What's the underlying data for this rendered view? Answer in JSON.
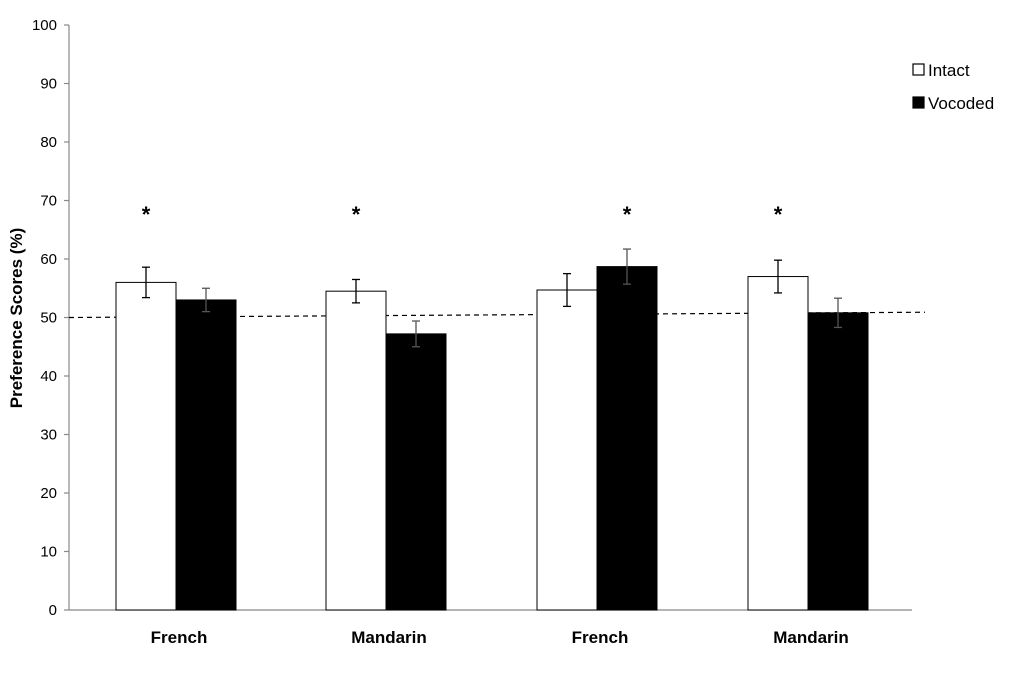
{
  "chart_data": {
    "type": "bar",
    "ylabel": "Preference Scores (%)",
    "xlabel": "",
    "ylim": [
      0,
      100
    ],
    "yticks": [
      "0",
      "10",
      "20",
      "30",
      "40",
      "50",
      "60",
      "70",
      "80",
      "90",
      "100"
    ],
    "categories": [
      "French",
      "Mandarin",
      "French",
      "Mandarin"
    ],
    "series": [
      {
        "name": "Intact",
        "color": "#ffffff",
        "values": [
          56,
          54.5,
          54.7,
          57
        ],
        "errors": [
          2.6,
          2.0,
          2.8,
          2.8
        ]
      },
      {
        "name": "Vocoded",
        "color": "#000000",
        "values": [
          53,
          47.2,
          58.7,
          50.8
        ],
        "errors": [
          2.0,
          2.2,
          3.0,
          2.5
        ]
      }
    ],
    "reference_line": {
      "style": "dashed",
      "y_start": 50,
      "y_end": 50.9
    },
    "significance": [
      {
        "category_index": 0,
        "series_index": 0,
        "label": "*"
      },
      {
        "category_index": 1,
        "series_index": 0,
        "label": "*"
      },
      {
        "category_index": 2,
        "series_index": 1,
        "label": "*"
      },
      {
        "category_index": 3,
        "series_index": 0,
        "label": "*"
      }
    ],
    "legend": {
      "position": "top-right"
    },
    "grid": false
  }
}
